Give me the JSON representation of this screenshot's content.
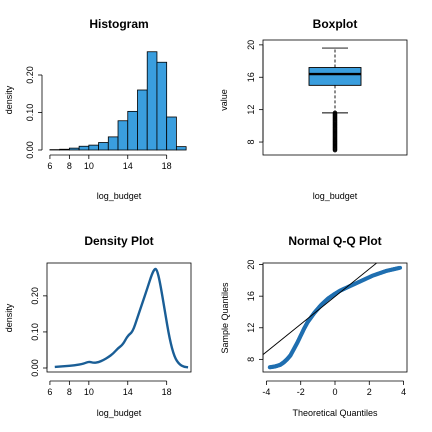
{
  "colors": {
    "hist_fill": "#3a9ede",
    "box_fill": "#3a9ede",
    "density_line": "#1a5e96",
    "qq_points": "#1f6fb0",
    "qq_line": "#000000",
    "axis": "#000000"
  },
  "chart_data": [
    {
      "type": "bar",
      "title": "Histogram",
      "xlabel": "log_budget",
      "ylabel": "density",
      "xlim": [
        5.7,
        20.5
      ],
      "ylim": [
        0,
        0.28
      ],
      "xticks": [
        6,
        8,
        10,
        14,
        18
      ],
      "xtick_labels": [
        "6",
        "8",
        "10",
        "14",
        "18"
      ],
      "yticks": [
        0.0,
        0.1,
        0.2
      ],
      "ytick_labels": [
        "0.00",
        "0.10",
        "0.20"
      ],
      "bin_edges": [
        6,
        7,
        8,
        9,
        10,
        11,
        12,
        13,
        14,
        15,
        16,
        17,
        18,
        19,
        20
      ],
      "values": [
        0.001,
        0.002,
        0.005,
        0.01,
        0.013,
        0.02,
        0.035,
        0.078,
        0.103,
        0.16,
        0.262,
        0.234,
        0.088,
        0.009
      ]
    },
    {
      "type": "boxplot",
      "title": "Boxplot",
      "xlabel": "log_budget",
      "ylabel": "value",
      "ylim": [
        6.4,
        20.6
      ],
      "yticks": [
        8,
        12,
        16,
        20
      ],
      "ytick_labels": [
        "8",
        "12",
        "16",
        "20"
      ],
      "whisker_low": 11.6,
      "q1": 15.0,
      "median": 16.4,
      "q3": 17.2,
      "whisker_high": 19.6,
      "outliers_range": [
        7.0,
        11.6
      ]
    },
    {
      "type": "line",
      "title": "Density Plot",
      "xlabel": "log_budget",
      "ylabel": "density",
      "xlim": [
        5.7,
        20.5
      ],
      "ylim": [
        0,
        0.28
      ],
      "xticks": [
        6,
        8,
        10,
        14,
        18
      ],
      "xtick_labels": [
        "6",
        "8",
        "10",
        "14",
        "18"
      ],
      "yticks": [
        0.0,
        0.1,
        0.2
      ],
      "ytick_labels": [
        "0.00",
        "0.10",
        "0.20"
      ],
      "x": [
        6.5,
        7.5,
        8.5,
        9.5,
        10.0,
        10.5,
        11.0,
        11.5,
        12.0,
        12.5,
        13.0,
        13.5,
        14.0,
        14.5,
        15.0,
        15.5,
        16.0,
        16.5,
        16.8,
        17.0,
        17.3,
        17.8,
        18.3,
        18.8,
        19.3,
        19.8,
        20.2
      ],
      "y": [
        0.003,
        0.005,
        0.007,
        0.012,
        0.018,
        0.014,
        0.016,
        0.022,
        0.03,
        0.04,
        0.055,
        0.065,
        0.09,
        0.1,
        0.14,
        0.18,
        0.22,
        0.262,
        0.276,
        0.272,
        0.24,
        0.16,
        0.08,
        0.03,
        0.01,
        0.003,
        0.002
      ]
    },
    {
      "type": "scatter",
      "title": "Normal Q-Q Plot",
      "xlabel": "Theoretical Quantiles",
      "ylabel": "Sample Quantiles",
      "xlim": [
        -4.2,
        4.2
      ],
      "ylim": [
        6.4,
        20.2
      ],
      "xticks": [
        -4,
        -2,
        0,
        2,
        4
      ],
      "xtick_labels": [
        "-4",
        "-2",
        "0",
        "2",
        "4"
      ],
      "yticks": [
        8,
        12,
        16,
        20
      ],
      "ytick_labels": [
        "8",
        "12",
        "16",
        "20"
      ],
      "reference_line": {
        "intercept": 15.95,
        "slope": 1.75
      },
      "curve": {
        "x": [
          -3.8,
          -3.5,
          -3.2,
          -3.0,
          -2.8,
          -2.6,
          -2.4,
          -2.2,
          -2.0,
          -1.8,
          -1.6,
          -1.4,
          -1.2,
          -1.0,
          -0.8,
          -0.6,
          -0.4,
          -0.2,
          0.0,
          0.3,
          0.6,
          1.0,
          1.4,
          1.8,
          2.2,
          2.6,
          3.0,
          3.4,
          3.8
        ],
        "y": [
          7.0,
          7.1,
          7.3,
          7.6,
          8.0,
          8.5,
          9.3,
          10.1,
          11.0,
          11.9,
          12.7,
          13.3,
          13.9,
          14.4,
          14.9,
          15.3,
          15.7,
          16.0,
          16.3,
          16.7,
          17.0,
          17.4,
          17.8,
          18.2,
          18.6,
          18.9,
          19.2,
          19.4,
          19.6
        ]
      }
    }
  ]
}
